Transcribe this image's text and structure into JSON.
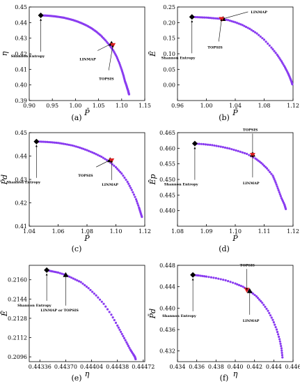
{
  "chart_data": [
    {
      "type": "scatter",
      "caption": "(a)",
      "xlabel": "P̄",
      "ylabel": "η",
      "xlim": [
        0.9,
        1.15
      ],
      "ylim": [
        0.39,
        0.45
      ],
      "xticks": [
        "0.90",
        "0.95",
        "1.00",
        "1.05",
        "1.10",
        "1.15"
      ],
      "yticks": [
        "0.39",
        "0.40",
        "0.41",
        "0.42",
        "0.43",
        "0.44",
        "0.45"
      ],
      "series": [
        {
          "x": [
            0.925,
            0.935,
            0.945,
            0.955,
            0.965,
            0.975,
            0.985,
            0.995,
            1.005,
            1.015,
            1.025,
            1.035,
            1.045,
            1.055,
            1.065,
            1.075,
            1.082,
            1.089,
            1.095,
            1.1,
            1.104,
            1.107,
            1.11,
            1.112,
            1.114,
            1.115,
            1.116
          ],
          "y": [
            0.4446,
            0.4445,
            0.4443,
            0.444,
            0.4436,
            0.4431,
            0.4424,
            0.4416,
            0.4406,
            0.4394,
            0.438,
            0.4363,
            0.4342,
            0.4317,
            0.4286,
            0.425,
            0.422,
            0.4182,
            0.414,
            0.4098,
            0.406,
            0.4025,
            0.4,
            0.398,
            0.3963,
            0.395,
            0.394
          ]
        }
      ],
      "markers": [
        {
          "label": "Shannon Entropy",
          "x": 0.925,
          "y": 0.4446,
          "shape": "diamond"
        },
        {
          "label": "LINMAP",
          "x": 1.078,
          "y": 0.4265,
          "shape": "triangle"
        },
        {
          "label": "TOPSIS",
          "x": 1.081,
          "y": 0.4255,
          "shape": "red-triangle"
        }
      ]
    },
    {
      "type": "scatter",
      "caption": "(b)",
      "xlabel": "P̄",
      "ylabel": "Ē",
      "xlim": [
        0.96,
        1.12
      ],
      "ylim": [
        -0.05,
        0.25
      ],
      "xticks": [
        "0.96",
        "1.00",
        "1.04",
        "1.08",
        "1.12"
      ],
      "yticks": [
        "0.00",
        "0.05",
        "0.10",
        "0.15",
        "0.20",
        "0.25"
      ],
      "series": [
        {
          "x": [
            0.98,
            0.99,
            1.0,
            1.01,
            1.02,
            1.03,
            1.04,
            1.05,
            1.06,
            1.07,
            1.08,
            1.09,
            1.098,
            1.104,
            1.109,
            1.113,
            1.116,
            1.118,
            1.119
          ],
          "y": [
            0.218,
            0.217,
            0.216,
            0.214,
            0.212,
            0.208,
            0.201,
            0.192,
            0.18,
            0.165,
            0.145,
            0.12,
            0.097,
            0.076,
            0.056,
            0.038,
            0.022,
            0.01,
            0.002
          ]
        }
      ],
      "markers": [
        {
          "label": "Shannon Entropy",
          "x": 0.98,
          "y": 0.218,
          "shape": "diamond"
        },
        {
          "label": "LINMAP",
          "x": 1.023,
          "y": 0.212,
          "shape": "triangle"
        },
        {
          "label": "TOPSIS",
          "x": 1.021,
          "y": 0.211,
          "shape": "red-triangle"
        }
      ]
    },
    {
      "type": "scatter",
      "caption": "(c)",
      "xlabel": "P̄",
      "ylabel": "P̄d",
      "xlim": [
        1.04,
        1.12
      ],
      "ylim": [
        0.41,
        0.45
      ],
      "xticks": [
        "1.04",
        "1.06",
        "1.08",
        "1.10",
        "1.12"
      ],
      "yticks": [
        "0.41",
        "0.42",
        "0.43",
        "0.44",
        "0.45"
      ],
      "series": [
        {
          "x": [
            1.045,
            1.05,
            1.055,
            1.06,
            1.065,
            1.07,
            1.075,
            1.08,
            1.085,
            1.09,
            1.095,
            1.1,
            1.104,
            1.108,
            1.111,
            1.114,
            1.116,
            1.117,
            1.118
          ],
          "y": [
            0.4462,
            0.4461,
            0.4459,
            0.4456,
            0.4451,
            0.4445,
            0.4436,
            0.4425,
            0.4412,
            0.4397,
            0.4378,
            0.4352,
            0.4325,
            0.429,
            0.4255,
            0.4215,
            0.418,
            0.416,
            0.414
          ]
        }
      ],
      "markers": [
        {
          "label": "Shannon Entropy",
          "x": 1.045,
          "y": 0.4462,
          "shape": "diamond"
        },
        {
          "label": "TOPSIS",
          "x": 1.096,
          "y": 0.4383,
          "shape": "triangle"
        },
        {
          "label": "LINMAP",
          "x": 1.097,
          "y": 0.4381,
          "shape": "red-triangle"
        }
      ]
    },
    {
      "type": "scatter",
      "caption": "(d)",
      "xlabel": "P̄",
      "ylabel": "Ēp",
      "xlim": [
        1.08,
        1.12
      ],
      "ylim": [
        0.435,
        0.465
      ],
      "xticks": [
        "1.08",
        "1.09",
        "1.10",
        "1.11",
        "1.12"
      ],
      "yticks": [
        "0.440",
        "0.445",
        "0.450",
        "0.455",
        "0.460",
        "0.465"
      ],
      "series": [
        {
          "x": [
            1.086,
            1.089,
            1.092,
            1.095,
            1.098,
            1.101,
            1.104,
            1.107,
            1.109,
            1.111,
            1.113,
            1.114,
            1.115,
            1.116,
            1.117,
            1.1175
          ],
          "y": [
            0.4615,
            0.4613,
            0.461,
            0.4605,
            0.4599,
            0.4591,
            0.4582,
            0.4567,
            0.4553,
            0.4535,
            0.4512,
            0.449,
            0.4465,
            0.444,
            0.442,
            0.4405
          ]
        }
      ],
      "markers": [
        {
          "label": "Shannon Entropy",
          "x": 1.086,
          "y": 0.4615,
          "shape": "diamond"
        },
        {
          "label": "TOPSIS",
          "x": 1.106,
          "y": 0.458,
          "shape": "triangle"
        },
        {
          "label": "LINMAP",
          "x": 1.106,
          "y": 0.4578,
          "shape": "red-triangle"
        }
      ]
    },
    {
      "type": "scatter",
      "caption": "(e)",
      "xlabel": "η",
      "ylabel": "Ē",
      "xlim": [
        0.44322,
        0.44474
      ],
      "ylim": [
        0.2092,
        0.2172
      ],
      "xticks": [
        "0.44336",
        "0.44370",
        "0.44404",
        "0.44438",
        "0.44472"
      ],
      "yticks": [
        "0.2096",
        "0.2112",
        "0.2128",
        "0.2144",
        "0.2160"
      ],
      "series": [
        {
          "x": [
            0.44345,
            0.44352,
            0.4436,
            0.4437,
            0.4438,
            0.4439,
            0.444,
            0.4441,
            0.4442,
            0.4443,
            0.44438,
            0.44444,
            0.4445,
            0.44455,
            0.44459,
            0.44461,
            0.44462
          ],
          "y": [
            0.2168,
            0.2167,
            0.2166,
            0.2164,
            0.2161,
            0.2158,
            0.2153,
            0.2147,
            0.214,
            0.2131,
            0.2122,
            0.2115,
            0.2108,
            0.2102,
            0.2098,
            0.2096,
            0.2094
          ]
        }
      ],
      "markers": [
        {
          "label": "Shannon Entropy",
          "x": 0.44345,
          "y": 0.2168,
          "shape": "diamond"
        },
        {
          "label": "LINMAP or TOPSIS",
          "x": 0.4437,
          "y": 0.2164,
          "shape": "triangle"
        }
      ]
    },
    {
      "type": "scatter",
      "caption": "(f)",
      "xlabel": "η",
      "ylabel": "P̄d",
      "xlim": [
        0.434,
        0.446
      ],
      "ylim": [
        0.43,
        0.448
      ],
      "xticks": [
        "0.434",
        "0.436",
        "0.438",
        "0.440",
        "0.442",
        "0.444",
        "0.446"
      ],
      "yticks": [
        "0.432",
        "0.436",
        "0.440",
        "0.444",
        "0.448"
      ],
      "series": [
        {
          "x": [
            0.4356,
            0.4362,
            0.437,
            0.438,
            0.439,
            0.44,
            0.4408,
            0.4415,
            0.4422,
            0.4428,
            0.4434,
            0.4439,
            0.4443,
            0.4446,
            0.4448,
            0.4449
          ],
          "y": [
            0.4462,
            0.4461,
            0.4459,
            0.4456,
            0.4452,
            0.4446,
            0.444,
            0.4432,
            0.4422,
            0.441,
            0.4395,
            0.4378,
            0.436,
            0.4342,
            0.4325,
            0.4308
          ]
        }
      ],
      "markers": [
        {
          "label": "Shannon Entropy",
          "x": 0.4356,
          "y": 0.4462,
          "shape": "diamond"
        },
        {
          "label": "TOPSIS",
          "x": 0.4412,
          "y": 0.4434,
          "shape": "red-triangle"
        },
        {
          "label": "LINMAP",
          "x": 0.4415,
          "y": 0.4432,
          "shape": "triangle"
        }
      ]
    }
  ],
  "colors": {
    "points": "#8a3cf0",
    "marker_red": "#e02020",
    "marker_black": "#000000"
  }
}
